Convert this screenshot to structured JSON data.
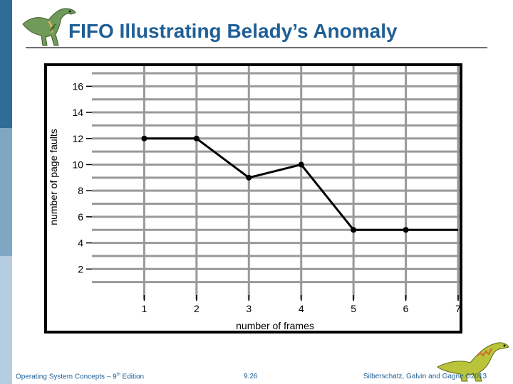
{
  "slide": {
    "title": "FIFO Illustrating Belady’s Anomaly",
    "footer_left": "Operating System Concepts – 9",
    "footer_left_sup": "th",
    "footer_left_tail": " Edition",
    "footer_page": "9.26",
    "footer_right": "Silberschatz, Galvin and Gagne ©2013"
  },
  "colors": {
    "title": "#1f5f95",
    "grid": "#999999",
    "line": "#000000"
  },
  "icons": {
    "top": "dinosaur-icon",
    "bottom": "dinosaur-icon"
  },
  "chart_data": {
    "type": "line",
    "x": [
      1,
      2,
      3,
      4,
      5,
      6,
      7
    ],
    "series": [
      {
        "values": [
          12,
          12,
          9,
          10,
          5,
          5,
          5
        ]
      }
    ],
    "xlabel": "number of frames",
    "ylabel": "number of page faults",
    "xticks": [
      "1",
      "2",
      "3",
      "4",
      "5",
      "6",
      "7"
    ],
    "yticks": [
      "2",
      "4",
      "6",
      "8",
      "10",
      "12",
      "14",
      "16"
    ],
    "xlim": [
      0,
      7
    ],
    "ylim": [
      0,
      17
    ],
    "grid": true,
    "legend": "none"
  }
}
